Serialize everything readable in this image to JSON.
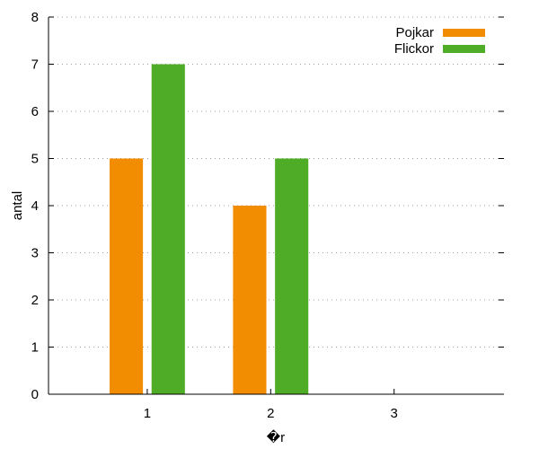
{
  "chart_data": {
    "type": "bar",
    "categories": [
      "1",
      "2",
      "3"
    ],
    "series": [
      {
        "name": "Pojkar",
        "color": "#f28c00",
        "values": [
          5,
          4,
          0
        ]
      },
      {
        "name": "Flickor",
        "color": "#4fac27",
        "values": [
          7,
          5,
          0
        ]
      }
    ],
    "xlabel": "�r",
    "ylabel": "antal",
    "ylim": [
      0,
      8
    ],
    "yticks": [
      "0",
      "1",
      "2",
      "3",
      "4",
      "5",
      "6",
      "7",
      "8"
    ],
    "grid": true,
    "legend_position": "top-right"
  }
}
